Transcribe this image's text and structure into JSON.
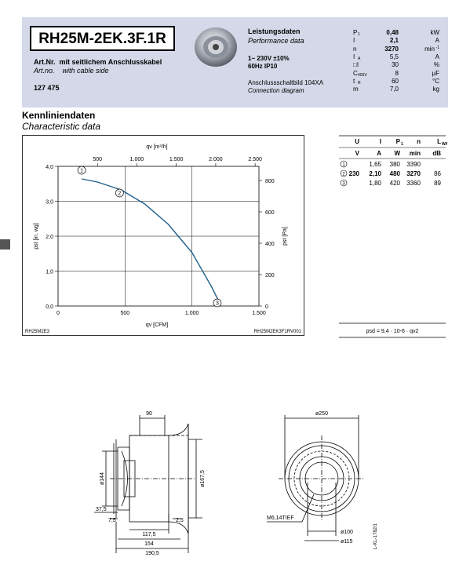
{
  "header": {
    "model": "RH25M-2EK.3F.1R",
    "art_nr_label_de": "Art.Nr.",
    "art_nr_desc_de": "mit seitlichem Anschlusskabel",
    "art_no_label_en": "Art.no.",
    "art_no_desc_en": "with cable side",
    "art_number": "127 475",
    "perf_title_de": "Leistungsdaten",
    "perf_title_en": "Performance data",
    "supply_line1": "1~ 230V ±10%",
    "supply_line2": "60Hz  IP10",
    "conn_de": "Anschlussschaltbild 104XA",
    "conn_en": "Connection diagram",
    "specs": [
      {
        "sym": "P",
        "sub": "1",
        "val": "0,48",
        "unit": "kW",
        "bold": true
      },
      {
        "sym": "I",
        "sub": "",
        "val": "2,1",
        "unit": "A",
        "bold": true
      },
      {
        "sym": "n",
        "sub": "",
        "val": "3270",
        "unit": "min",
        "unit_sup": "-1",
        "bold": true
      },
      {
        "sym": "I",
        "sub": "A",
        "val": "5,5",
        "unit": "A",
        "bold": false
      },
      {
        "sym": "□I",
        "sub": "",
        "val": "30",
        "unit": "%",
        "bold": false
      },
      {
        "sym": "C",
        "sub": "400V",
        "val": "8",
        "unit": "µF",
        "bold": false
      },
      {
        "sym": "t",
        "sub": "R",
        "val": "60",
        "unit": "°C",
        "bold": false
      },
      {
        "sym": "m",
        "sub": "",
        "val": "7,0",
        "unit": "kg",
        "bold": false
      }
    ]
  },
  "section": {
    "title_de": "Kennliniendaten",
    "title_en": "Characteristic data"
  },
  "chart_data": {
    "type": "line",
    "x_top_label": "qv [m³/h]",
    "x_top_ticks": [
      "500",
      "1.000",
      "1.500",
      "2.000",
      "2.500"
    ],
    "x_bottom_label": "qv [CFM]",
    "x_bottom_ticks": [
      "0",
      "500",
      "1.000",
      "1.500"
    ],
    "xlim_cfm": [
      0,
      1500
    ],
    "y_left_label": "pst [in. wg]",
    "y_left_ticks": [
      "0,0",
      "1,0",
      "2,0",
      "3,0",
      "4,0"
    ],
    "ylim_inwg": [
      0,
      4
    ],
    "y_right_label": "pst [Pa]",
    "y_right_ticks": [
      "0",
      "200",
      "400",
      "600",
      "800"
    ],
    "series": [
      {
        "x_m3h": [
          300,
          500,
          800,
          1100,
          1400,
          1700,
          1950,
          2050
        ],
        "y_pa": [
          810,
          790,
          740,
          650,
          520,
          340,
          120,
          20
        ]
      }
    ],
    "markers": [
      {
        "label": "1",
        "x_m3h": 300,
        "y_pa": 865
      },
      {
        "label": "2",
        "x_m3h": 780,
        "y_pa": 720
      },
      {
        "label": "3",
        "x_m3h": 2020,
        "y_pa": 20
      }
    ],
    "ref_left": "RH25M2E3",
    "ref_right": "RH25M2EK3F1RV001"
  },
  "op_table": {
    "headers": [
      "U",
      "I",
      "P",
      "n",
      "L"
    ],
    "header_subs": [
      "",
      "",
      "1",
      "",
      "WA"
    ],
    "units": [
      "V",
      "A",
      "W",
      "min",
      "dB"
    ],
    "rows": [
      {
        "pt": "1",
        "u": "",
        "i": "1,65",
        "p": "380",
        "n": "3390",
        "l": "",
        "bold": false
      },
      {
        "pt": "2",
        "u": "230",
        "i": "2,10",
        "p": "480",
        "n": "3270",
        "l": "86",
        "bold": true
      },
      {
        "pt": "3",
        "u": "",
        "i": "1,80",
        "p": "420",
        "n": "3360",
        "l": "89",
        "bold": false
      }
    ],
    "formula": "psd = 9,4 · 10-6 · qv2"
  },
  "drawing": {
    "dims_side": [
      "90",
      "ø144",
      "ø167,5",
      "37,5",
      "7,5",
      "2,5",
      "117,5",
      "154",
      "190,5"
    ],
    "dims_front": [
      "ø250",
      "M6,14TIEF",
      "ø100",
      "ø115"
    ],
    "doc_ref": "L-KL-1782/1"
  }
}
